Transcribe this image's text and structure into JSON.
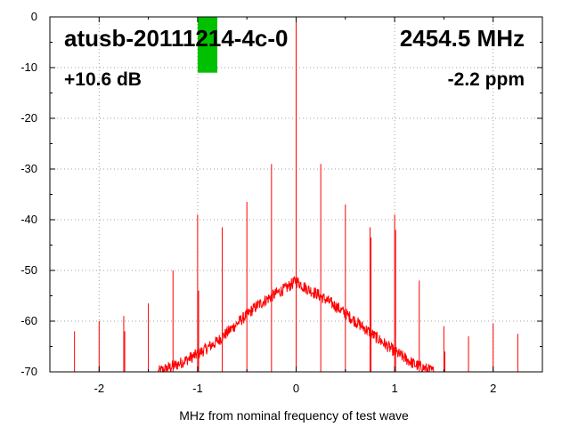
{
  "chart_data": {
    "type": "line",
    "xlabel": "MHz from nominal frequency of test wave",
    "ylabel": "",
    "xlim": [
      -2.5,
      2.5
    ],
    "ylim": [
      -70,
      0
    ],
    "x_ticks": [
      -2,
      -1,
      0,
      1,
      2
    ],
    "x_tick_labels": [
      "-2",
      "-1",
      "0",
      "1",
      "2"
    ],
    "y_ticks": [
      0,
      -10,
      -20,
      -30,
      -40,
      -50,
      -60,
      -70
    ],
    "y_tick_labels": [
      "0",
      "-10",
      "-20",
      "-30",
      "-40",
      "-50",
      "-60",
      "-70"
    ],
    "grid": true,
    "line_color": "#ff0000",
    "marker_color": "#00c000",
    "annotations": {
      "device": "atusb-20111214-4c-0",
      "frequency": "2454.5 MHz",
      "gain": "+10.6 dB",
      "offset": "-2.2 ppm"
    },
    "marker_band": {
      "x_range": [
        -1.0,
        -0.8
      ],
      "y_range": [
        -11,
        0
      ]
    },
    "series": [
      {
        "noise_hump": {
          "x": [
            -1.4,
            -1.2,
            -1.0,
            -0.8,
            -0.6,
            -0.4,
            -0.2,
            -0.1,
            0.0,
            0.1,
            0.2,
            0.4,
            0.6,
            0.8,
            1.0,
            1.2,
            1.4
          ],
          "y": [
            -70,
            -68.5,
            -66.5,
            -64,
            -60.5,
            -57,
            -54.5,
            -53.5,
            -52,
            -53.5,
            -54.5,
            -57,
            -60,
            -63,
            -66,
            -68.5,
            -70
          ]
        },
        "spurs": {
          "x": [
            -2.25,
            -2.0,
            -1.75,
            -1.74,
            -1.5,
            -1.25,
            -1.0,
            -0.99,
            -0.75,
            -0.5,
            -0.25,
            0.0,
            0.25,
            0.5,
            0.75,
            0.76,
            1.0,
            1.01,
            1.25,
            1.5,
            1.51,
            1.75,
            2.0,
            2.25,
            2.5
          ],
          "y": [
            -62,
            -60,
            -59,
            -62,
            -56.5,
            -50,
            -39,
            -54,
            -41.5,
            -36.5,
            -29,
            0,
            -29,
            -37,
            -41.5,
            -43.5,
            -39,
            -42,
            -52,
            -61,
            -66,
            -63,
            -60.5,
            -62.5,
            -63.5
          ]
        }
      }
    ]
  }
}
